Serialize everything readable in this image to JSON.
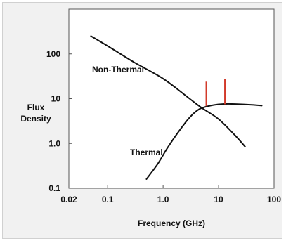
{
  "chart_data": {
    "type": "line",
    "title": "",
    "xlabel": "Frequency (GHz)",
    "ylabel_lines": [
      "Flux",
      "Density"
    ],
    "xscale": "log",
    "yscale": "log",
    "xlim": [
      0.02,
      100
    ],
    "ylim": [
      0.1,
      1000
    ],
    "x_ticks": [
      {
        "value": 0.02,
        "label": "0.02"
      },
      {
        "value": 0.1,
        "label": "0.1"
      },
      {
        "value": 1,
        "label": "1.0"
      },
      {
        "value": 10,
        "label": "10"
      },
      {
        "value": 100,
        "label": "100"
      }
    ],
    "y_ticks": [
      {
        "value": 0.1,
        "label": "0.1"
      },
      {
        "value": 1,
        "label": "1.0"
      },
      {
        "value": 10,
        "label": "10"
      },
      {
        "value": 100,
        "label": "100"
      }
    ],
    "grid": false,
    "series": [
      {
        "name": "Non-Thermal",
        "color": "#111111",
        "points": [
          [
            0.05,
            250
          ],
          [
            0.1,
            150
          ],
          [
            0.3,
            65
          ],
          [
            1,
            28
          ],
          [
            3,
            10
          ],
          [
            5,
            6.2
          ],
          [
            10,
            3.5
          ],
          [
            20,
            1.5
          ],
          [
            30,
            0.85
          ]
        ]
      },
      {
        "name": "Thermal",
        "color": "#111111",
        "points": [
          [
            0.5,
            0.16
          ],
          [
            0.8,
            0.35
          ],
          [
            1.2,
            0.8
          ],
          [
            2,
            2
          ],
          [
            3,
            3.8
          ],
          [
            4,
            5.3
          ],
          [
            5,
            6.2
          ],
          [
            8,
            7.2
          ],
          [
            12,
            7.6
          ],
          [
            20,
            7.6
          ],
          [
            40,
            7.3
          ],
          [
            60,
            7
          ]
        ]
      }
    ],
    "markers": [
      {
        "x": 6,
        "y_from": 6.8,
        "y_to": 24,
        "color": "#d23a2a"
      },
      {
        "x": 13,
        "y_from": 7.5,
        "y_to": 28,
        "color": "#d23a2a"
      }
    ]
  }
}
